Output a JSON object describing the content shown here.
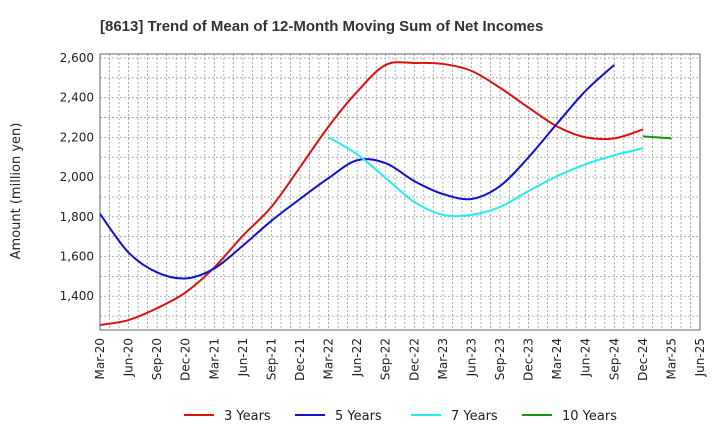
{
  "chart_data": {
    "type": "line",
    "title": "[8613]  Trend of Mean of 12-Month Moving Sum of Net Incomes",
    "xlabel": "",
    "ylabel": "Amount (million yen)",
    "ylim": [
      1230,
      2620
    ],
    "yticks": [
      1400,
      1600,
      1800,
      2000,
      2200,
      2400,
      2600
    ],
    "ytick_labels": [
      "1,400",
      "1,600",
      "1,800",
      "2,000",
      "2,200",
      "2,400",
      "2,600"
    ],
    "xticks": [
      "Mar-20",
      "Jun-20",
      "Sep-20",
      "Dec-20",
      "Mar-21",
      "Jun-21",
      "Sep-21",
      "Dec-21",
      "Mar-22",
      "Jun-22",
      "Sep-22",
      "Dec-22",
      "Mar-23",
      "Jun-23",
      "Sep-23",
      "Dec-23",
      "Mar-24",
      "Jun-24",
      "Sep-24",
      "Dec-24",
      "Mar-25",
      "Jun-25"
    ],
    "grid": true,
    "legend_position": "bottom",
    "series": [
      {
        "name": "3 Years",
        "color": "#dd1111",
        "start_index": 0,
        "values": [
          1255,
          1280,
          1340,
          1420,
          1545,
          1705,
          1850,
          2050,
          2255,
          2430,
          2565,
          2575,
          2570,
          2535,
          2450,
          2350,
          2255,
          2200,
          2195,
          2240
        ]
      },
      {
        "name": "5 Years",
        "color": "#1111cc",
        "start_index": 0,
        "values": [
          1815,
          1620,
          1520,
          1490,
          1540,
          1655,
          1780,
          1890,
          1995,
          2085,
          2070,
          1980,
          1915,
          1890,
          1955,
          2100,
          2270,
          2435,
          2565
        ]
      },
      {
        "name": "7 Years",
        "color": "#22eeee",
        "start_index": 8,
        "values": [
          2200,
          2115,
          1995,
          1875,
          1810,
          1810,
          1850,
          1930,
          2005,
          2065,
          2110,
          2145
        ]
      },
      {
        "name": "10 Years",
        "color": "#119911",
        "start_index": 19,
        "values": [
          2205,
          2195
        ]
      }
    ]
  }
}
